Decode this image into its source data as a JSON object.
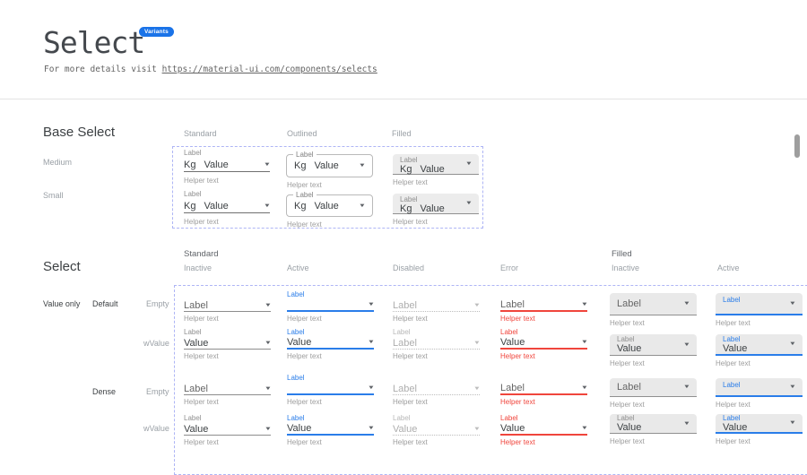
{
  "header": {
    "title": "Select",
    "badge": "Variants",
    "subtitle_prefix": "For more details visit ",
    "subtitle_link": "https://material-ui.com/components/selects"
  },
  "strings": {
    "label": "Label",
    "value": "Value",
    "helper": "Helper text",
    "kg": "Kg"
  },
  "colors": {
    "accent_blue": "#2a7de9",
    "error_red": "#f0453c",
    "badge_blue": "#1a73e8",
    "dashed_border": "#aeb5f5",
    "filled_bg": "#e9e9e9"
  },
  "base_select": {
    "heading": "Base Select",
    "column_headers": [
      "Standard",
      "Outlined",
      "Filled"
    ],
    "row_headers": [
      "Medium",
      "Small"
    ],
    "cells": [
      {
        "variant": "standard",
        "size": "medium",
        "floating": "Label",
        "prefix": "Kg",
        "main": "Value",
        "helper": "Helper text"
      },
      {
        "variant": "outlined",
        "size": "medium",
        "floating": "Label",
        "prefix": "Kg",
        "main": "Value",
        "helper": "Helper text"
      },
      {
        "variant": "filled",
        "size": "medium",
        "floating": "Label",
        "prefix": "Kg",
        "main": "Value",
        "helper": "Helper text"
      },
      {
        "variant": "standard",
        "size": "small",
        "floating": "Label",
        "prefix": "Kg",
        "main": "Value",
        "helper": "Helper text"
      },
      {
        "variant": "outlined",
        "size": "small",
        "floating": "Label",
        "prefix": "Kg",
        "main": "Value",
        "helper": "Helper text"
      },
      {
        "variant": "filled",
        "size": "small",
        "floating": "Label",
        "prefix": "Kg",
        "main": "Value",
        "helper": "Helper text"
      }
    ]
  },
  "select_grid": {
    "heading": "Select",
    "group_headers": [
      "Standard",
      "Filled"
    ],
    "column_headers": [
      "Inactive",
      "Active",
      "Disabled",
      "Error",
      "Inactive",
      "Active"
    ],
    "row_labels": {
      "value_only": "Value only",
      "default_group": "Default",
      "dense_group": "Dense",
      "empty": "Empty",
      "wvalue": "wValue"
    },
    "cells": [
      {
        "row": 0,
        "col": 0,
        "variant": "standard",
        "state": "inactive",
        "floating": "",
        "main": "Label",
        "helper": "Helper text"
      },
      {
        "row": 0,
        "col": 1,
        "variant": "standard",
        "state": "active",
        "floating": "Label",
        "main": "",
        "helper": "Helper text"
      },
      {
        "row": 0,
        "col": 2,
        "variant": "standard",
        "state": "disabled",
        "floating": "",
        "main": "Label",
        "helper": "Helper text"
      },
      {
        "row": 0,
        "col": 3,
        "variant": "standard",
        "state": "error",
        "floating": "",
        "main": "Label",
        "helper": "Helper text"
      },
      {
        "row": 0,
        "col": 4,
        "variant": "filled",
        "state": "inactive",
        "floating": "",
        "main": "Label",
        "helper": "Helper text"
      },
      {
        "row": 0,
        "col": 5,
        "variant": "filled",
        "state": "active",
        "floating": "Label",
        "main": "",
        "helper": "Helper text"
      },
      {
        "row": 1,
        "col": 0,
        "variant": "standard",
        "state": "inactive",
        "floating": "Label",
        "main": "Value",
        "helper": "Helper text"
      },
      {
        "row": 1,
        "col": 1,
        "variant": "standard",
        "state": "active",
        "floating": "Label",
        "main": "Value",
        "helper": "Helper text"
      },
      {
        "row": 1,
        "col": 2,
        "variant": "standard",
        "state": "disabled",
        "floating": "Label",
        "main": "Label",
        "helper": "Helper text"
      },
      {
        "row": 1,
        "col": 3,
        "variant": "standard",
        "state": "error",
        "floating": "Label",
        "main": "Value",
        "helper": "Helper text"
      },
      {
        "row": 1,
        "col": 4,
        "variant": "filled",
        "state": "inactive",
        "floating": "Label",
        "main": "Value",
        "helper": "Helper text"
      },
      {
        "row": 1,
        "col": 5,
        "variant": "filled",
        "state": "active",
        "floating": "Label",
        "main": "Value",
        "helper": "Helper text"
      },
      {
        "row": 2,
        "col": 0,
        "variant": "standard",
        "state": "inactive",
        "floating": "",
        "main": "Label",
        "helper": "Helper text"
      },
      {
        "row": 2,
        "col": 1,
        "variant": "standard",
        "state": "active",
        "floating": "Label",
        "main": "",
        "helper": "Helper text"
      },
      {
        "row": 2,
        "col": 2,
        "variant": "standard",
        "state": "disabled",
        "floating": "",
        "main": "Label",
        "helper": "Helper text"
      },
      {
        "row": 2,
        "col": 3,
        "variant": "standard",
        "state": "error",
        "floating": "",
        "main": "Label",
        "helper": "Helper text"
      },
      {
        "row": 2,
        "col": 4,
        "variant": "filled",
        "state": "inactive",
        "floating": "",
        "main": "Label",
        "helper": "Helper text"
      },
      {
        "row": 2,
        "col": 5,
        "variant": "filled",
        "state": "active",
        "floating": "Label",
        "main": "",
        "helper": "Helper text"
      },
      {
        "row": 3,
        "col": 0,
        "variant": "standard",
        "state": "inactive",
        "floating": "Label",
        "main": "Value",
        "helper": "Helper text"
      },
      {
        "row": 3,
        "col": 1,
        "variant": "standard",
        "state": "active",
        "floating": "Label",
        "main": "Value",
        "helper": "Helper text"
      },
      {
        "row": 3,
        "col": 2,
        "variant": "standard",
        "state": "disabled",
        "floating": "Label",
        "main": "Value",
        "helper": "Helper text"
      },
      {
        "row": 3,
        "col": 3,
        "variant": "standard",
        "state": "error",
        "floating": "Label",
        "main": "Value",
        "helper": "Helper text"
      },
      {
        "row": 3,
        "col": 4,
        "variant": "filled",
        "state": "inactive",
        "floating": "Label",
        "main": "Value",
        "helper": "Helper text"
      },
      {
        "row": 3,
        "col": 5,
        "variant": "filled",
        "state": "active",
        "floating": "Label",
        "main": "Value",
        "helper": "Helper text"
      }
    ]
  }
}
